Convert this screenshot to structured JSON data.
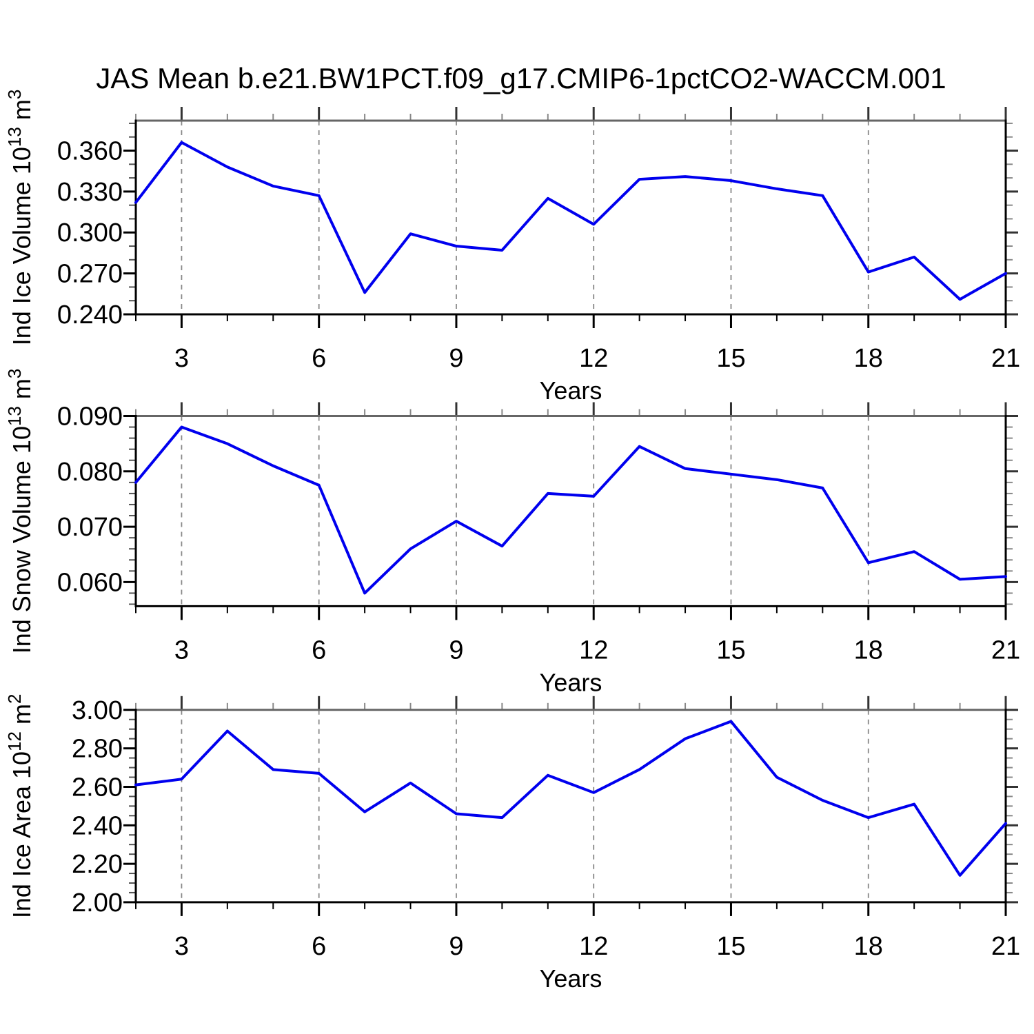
{
  "title": "JAS Mean b.e21.BW1PCT.f09_g17.CMIP6-1pctCO2-WACCM.001",
  "colors": {
    "line": "#0000EE",
    "grid": "#888888",
    "axis": "#000000",
    "top_border": "#666666",
    "minor_tick": "#555555"
  },
  "chart_data": [
    {
      "type": "line",
      "name": "ind-ice-volume",
      "ylabel_text": "Ind Ice Volume 10^13 m^3",
      "ylabel": {
        "pre": "Ind Ice Volume 10",
        "sup1": "13",
        "mid": " m",
        "sup2": "3"
      },
      "xlabel": "Years",
      "x": [
        2,
        3,
        4,
        5,
        6,
        7,
        8,
        9,
        10,
        11,
        12,
        13,
        14,
        15,
        16,
        17,
        18,
        19,
        20,
        21
      ],
      "values": [
        0.322,
        0.366,
        0.348,
        0.334,
        0.327,
        0.256,
        0.299,
        0.29,
        0.287,
        0.325,
        0.306,
        0.339,
        0.341,
        0.338,
        0.332,
        0.327,
        0.271,
        0.282,
        0.251,
        0.27
      ],
      "xlim": [
        2,
        21
      ],
      "ylim": [
        0.24,
        0.382
      ],
      "xticks": [
        3,
        6,
        9,
        12,
        15,
        18,
        21
      ],
      "xtick_labels": [
        "3",
        "6",
        "9",
        "12",
        "15",
        "18",
        "21"
      ],
      "xminor_step": 1,
      "yticks": [
        0.24,
        0.27,
        0.3,
        0.33,
        0.36
      ],
      "ytick_labels": [
        "0.240",
        "0.270",
        "0.300",
        "0.330",
        "0.360"
      ],
      "ytick_minors": [
        0.25,
        0.26,
        0.28,
        0.29,
        0.31,
        0.32,
        0.34,
        0.35,
        0.37,
        0.38
      ],
      "grid": "vertical-dashed"
    },
    {
      "type": "line",
      "name": "ind-snow-volume",
      "ylabel_text": "Ind Snow Volume 10^13 m^3",
      "ylabel": {
        "pre": "Ind Snow Volume 10",
        "sup1": "13",
        "mid": " m",
        "sup2": "3"
      },
      "xlabel": "Years",
      "x": [
        2,
        3,
        4,
        5,
        6,
        7,
        8,
        9,
        10,
        11,
        12,
        13,
        14,
        15,
        16,
        17,
        18,
        19,
        20,
        21
      ],
      "values": [
        0.078,
        0.088,
        0.085,
        0.081,
        0.0775,
        0.058,
        0.066,
        0.071,
        0.0665,
        0.076,
        0.0755,
        0.0845,
        0.0805,
        0.0795,
        0.0785,
        0.077,
        0.0635,
        0.0655,
        0.0605,
        0.061
      ],
      "xlim": [
        2,
        21
      ],
      "ylim": [
        0.0556,
        0.09
      ],
      "xticks": [
        3,
        6,
        9,
        12,
        15,
        18,
        21
      ],
      "xtick_labels": [
        "3",
        "6",
        "9",
        "12",
        "15",
        "18",
        "21"
      ],
      "xminor_step": 1,
      "yticks": [
        0.06,
        0.07,
        0.08,
        0.09
      ],
      "ytick_labels": [
        "0.060",
        "0.070",
        "0.080",
        "0.090"
      ],
      "ytick_minors": [
        0.056,
        0.058,
        0.062,
        0.064,
        0.066,
        0.068,
        0.072,
        0.074,
        0.076,
        0.078,
        0.082,
        0.084,
        0.086,
        0.088
      ],
      "grid": "vertical-dashed"
    },
    {
      "type": "line",
      "name": "ind-ice-area",
      "ylabel_text": "Ind Ice Area 10^12 m^2",
      "ylabel": {
        "pre": "Ind Ice Area 10",
        "sup1": "12",
        "mid": " m",
        "sup2": "2"
      },
      "xlabel": "Years",
      "x": [
        2,
        3,
        4,
        5,
        6,
        7,
        8,
        9,
        10,
        11,
        12,
        13,
        14,
        15,
        16,
        17,
        18,
        19,
        20,
        21
      ],
      "values": [
        2.61,
        2.64,
        2.89,
        2.69,
        2.67,
        2.47,
        2.62,
        2.46,
        2.44,
        2.66,
        2.57,
        2.69,
        2.85,
        2.94,
        2.65,
        2.53,
        2.44,
        2.51,
        2.14,
        2.41
      ],
      "xlim": [
        2,
        21
      ],
      "ylim": [
        2.0,
        3.0
      ],
      "xticks": [
        3,
        6,
        9,
        12,
        15,
        18,
        21
      ],
      "xtick_labels": [
        "3",
        "6",
        "9",
        "12",
        "15",
        "18",
        "21"
      ],
      "xminor_step": 1,
      "yticks": [
        2.0,
        2.2,
        2.4,
        2.6,
        2.8,
        3.0
      ],
      "ytick_labels": [
        "2.00",
        "2.20",
        "2.40",
        "2.60",
        "2.80",
        "3.00"
      ],
      "ytick_minors": [
        2.05,
        2.1,
        2.15,
        2.25,
        2.3,
        2.35,
        2.45,
        2.5,
        2.55,
        2.65,
        2.7,
        2.75,
        2.85,
        2.9,
        2.95
      ],
      "grid": "vertical-dashed"
    }
  ]
}
